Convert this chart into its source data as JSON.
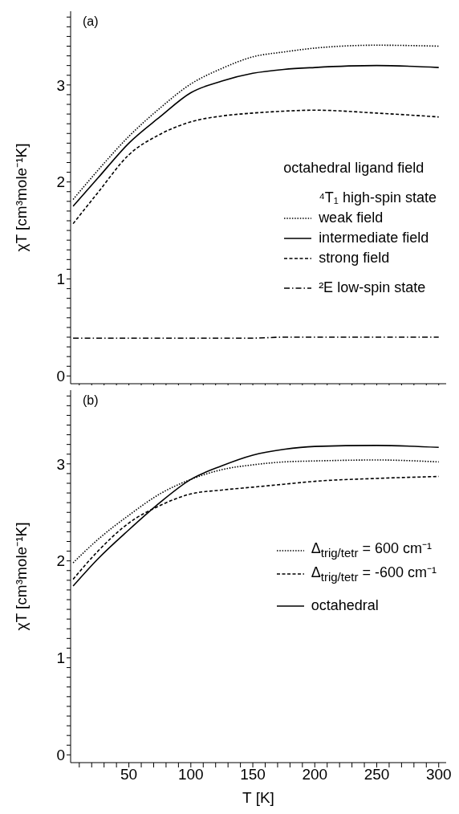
{
  "chart_data": [
    {
      "type": "line",
      "annotations": [
        "(a)",
        "⁴T₁ high-spin state"
      ],
      "legend_title": "octahedral ligand field",
      "ylabel": "χT     [cm³mole⁻¹K]",
      "tick_labels": "y",
      "legend": "right",
      "marker": "none",
      "x": [
        5,
        25,
        50,
        75,
        100,
        125,
        150,
        175,
        200,
        250,
        300
      ],
      "xlim": [
        3,
        306
      ],
      "xticks": [
        {
          "value": 10,
          "label": null
        },
        {
          "value": 20,
          "label": null
        },
        {
          "value": 30,
          "label": null
        },
        {
          "value": 40,
          "label": null
        },
        50,
        {
          "value": 60,
          "label": null
        },
        {
          "value": 70,
          "label": null
        },
        {
          "value": 80,
          "label": null
        },
        {
          "value": 90,
          "label": null
        },
        100,
        {
          "value": 110,
          "label": null
        },
        {
          "value": 120,
          "label": null
        },
        {
          "value": 130,
          "label": null
        },
        {
          "value": 140,
          "label": null
        },
        150,
        {
          "value": 160,
          "label": null
        },
        {
          "value": 170,
          "label": null
        },
        {
          "value": 180,
          "label": null
        },
        {
          "value": 190,
          "label": null
        },
        200,
        {
          "value": 210,
          "label": null
        },
        {
          "value": 220,
          "label": null
        },
        {
          "value": 230,
          "label": null
        },
        {
          "value": 240,
          "label": null
        },
        250,
        {
          "value": 260,
          "label": null
        },
        {
          "value": 270,
          "label": null
        },
        {
          "value": 280,
          "label": null
        },
        {
          "value": 290,
          "label": null
        },
        300
      ],
      "ylim": [
        -0.08,
        3.76
      ],
      "yticks": [
        0,
        {
          "value": 0.1,
          "label": null
        },
        {
          "value": 0.2,
          "label": null
        },
        {
          "value": 0.3,
          "label": null
        },
        {
          "value": 0.4,
          "label": null
        },
        {
          "value": 0.5,
          "label": null
        },
        {
          "value": 0.6,
          "label": null
        },
        {
          "value": 0.7,
          "label": null
        },
        {
          "value": 0.8,
          "label": null
        },
        {
          "value": 0.9,
          "label": null
        },
        1,
        {
          "value": 1.1,
          "label": null
        },
        {
          "value": 1.2,
          "label": null
        },
        {
          "value": 1.3,
          "label": null
        },
        {
          "value": 1.4,
          "label": null
        },
        {
          "value": 1.5,
          "label": null
        },
        {
          "value": 1.6,
          "label": null
        },
        {
          "value": 1.7,
          "label": null
        },
        {
          "value": 1.8,
          "label": null
        },
        {
          "value": 1.9,
          "label": null
        },
        2,
        {
          "value": 2.1,
          "label": null
        },
        {
          "value": 2.2,
          "label": null
        },
        {
          "value": 2.3,
          "label": null
        },
        {
          "value": 2.4,
          "label": null
        },
        {
          "value": 2.5,
          "label": null
        },
        {
          "value": 2.6,
          "label": null
        },
        {
          "value": 2.7,
          "label": null
        },
        {
          "value": 2.8,
          "label": null
        },
        {
          "value": 2.9,
          "label": null
        },
        3,
        {
          "value": 3.1,
          "label": null
        },
        {
          "value": 3.2,
          "label": null
        },
        {
          "value": 3.3,
          "label": null
        },
        {
          "value": 3.4,
          "label": null
        },
        {
          "value": 3.5,
          "label": null
        },
        {
          "value": 3.6,
          "label": null
        },
        {
          "value": 3.7,
          "label": null
        }
      ],
      "series": [
        {
          "name": "weak field",
          "color": "#000000",
          "line_style": "dotted",
          "values": [
            1.82,
            2.12,
            2.47,
            2.76,
            3.01,
            3.17,
            3.29,
            3.34,
            3.38,
            3.41,
            3.4
          ]
        },
        {
          "name": "intermediate field",
          "color": "#000000",
          "line_style": "solid",
          "values": [
            1.75,
            2.04,
            2.4,
            2.67,
            2.92,
            3.04,
            3.12,
            3.16,
            3.18,
            3.2,
            3.18
          ]
        },
        {
          "name": "strong field",
          "color": "#000000",
          "line_style": "dashed",
          "values": [
            1.57,
            1.89,
            2.28,
            2.49,
            2.62,
            2.68,
            2.71,
            2.73,
            2.74,
            2.71,
            2.67
          ]
        },
        {
          "name": "²E low-spin state",
          "color": "#000000",
          "line_style": "dashdot",
          "values": [
            0.39,
            0.39,
            0.39,
            0.39,
            0.39,
            0.39,
            0.39,
            0.4,
            0.4,
            0.4,
            0.4
          ]
        }
      ]
    },
    {
      "type": "line",
      "annotations": [
        "(b)"
      ],
      "xlabel": "T  [K]",
      "ylabel": "χT     [cm³mole⁻¹K]",
      "legend": "right",
      "marker": "none",
      "x": [
        5,
        25,
        50,
        75,
        100,
        125,
        150,
        175,
        200,
        250,
        300
      ],
      "xlim": [
        3,
        306
      ],
      "xticks": [
        {
          "value": 10,
          "label": null
        },
        {
          "value": 20,
          "label": null
        },
        {
          "value": 30,
          "label": null
        },
        {
          "value": 40,
          "label": null
        },
        50,
        {
          "value": 60,
          "label": null
        },
        {
          "value": 70,
          "label": null
        },
        {
          "value": 80,
          "label": null
        },
        {
          "value": 90,
          "label": null
        },
        100,
        {
          "value": 110,
          "label": null
        },
        {
          "value": 120,
          "label": null
        },
        {
          "value": 130,
          "label": null
        },
        {
          "value": 140,
          "label": null
        },
        150,
        {
          "value": 160,
          "label": null
        },
        {
          "value": 170,
          "label": null
        },
        {
          "value": 180,
          "label": null
        },
        {
          "value": 190,
          "label": null
        },
        200,
        {
          "value": 210,
          "label": null
        },
        {
          "value": 220,
          "label": null
        },
        {
          "value": 230,
          "label": null
        },
        {
          "value": 240,
          "label": null
        },
        250,
        {
          "value": 260,
          "label": null
        },
        {
          "value": 270,
          "label": null
        },
        {
          "value": 280,
          "label": null
        },
        {
          "value": 290,
          "label": null
        },
        300
      ],
      "ylim": [
        -0.08,
        3.76
      ],
      "yticks": [
        0,
        {
          "value": 0.1,
          "label": null
        },
        {
          "value": 0.2,
          "label": null
        },
        {
          "value": 0.3,
          "label": null
        },
        {
          "value": 0.4,
          "label": null
        },
        {
          "value": 0.5,
          "label": null
        },
        {
          "value": 0.6,
          "label": null
        },
        {
          "value": 0.7,
          "label": null
        },
        {
          "value": 0.8,
          "label": null
        },
        {
          "value": 0.9,
          "label": null
        },
        1,
        {
          "value": 1.1,
          "label": null
        },
        {
          "value": 1.2,
          "label": null
        },
        {
          "value": 1.3,
          "label": null
        },
        {
          "value": 1.4,
          "label": null
        },
        {
          "value": 1.5,
          "label": null
        },
        {
          "value": 1.6,
          "label": null
        },
        {
          "value": 1.7,
          "label": null
        },
        {
          "value": 1.8,
          "label": null
        },
        {
          "value": 1.9,
          "label": null
        },
        2,
        {
          "value": 2.1,
          "label": null
        },
        {
          "value": 2.2,
          "label": null
        },
        {
          "value": 2.3,
          "label": null
        },
        {
          "value": 2.4,
          "label": null
        },
        {
          "value": 2.5,
          "label": null
        },
        {
          "value": 2.6,
          "label": null
        },
        {
          "value": 2.7,
          "label": null
        },
        {
          "value": 2.8,
          "label": null
        },
        {
          "value": 2.9,
          "label": null
        },
        3,
        {
          "value": 3.1,
          "label": null
        },
        {
          "value": 3.2,
          "label": null
        },
        {
          "value": 3.3,
          "label": null
        },
        {
          "value": 3.4,
          "label": null
        },
        {
          "value": 3.5,
          "label": null
        },
        {
          "value": 3.6,
          "label": null
        },
        {
          "value": 3.7,
          "label": null
        }
      ],
      "series": [
        {
          "name": "Δ$_{trig/tetr}$ =  600 cm⁻¹",
          "color": "#000000",
          "line_style": "dotted",
          "values": [
            1.98,
            2.22,
            2.47,
            2.69,
            2.84,
            2.94,
            2.99,
            3.02,
            3.03,
            3.04,
            3.02
          ]
        },
        {
          "name": "Δ$_{trig/tetr}$ = -600 cm⁻¹",
          "color": "#000000",
          "line_style": "dashed",
          "values": [
            1.81,
            2.1,
            2.39,
            2.57,
            2.69,
            2.73,
            2.76,
            2.79,
            2.82,
            2.85,
            2.87
          ]
        },
        {
          "name": "octahedral",
          "color": "#000000",
          "line_style": "solid",
          "values": [
            1.74,
            2.02,
            2.32,
            2.6,
            2.84,
            2.98,
            3.09,
            3.15,
            3.18,
            3.19,
            3.17
          ]
        }
      ]
    }
  ]
}
